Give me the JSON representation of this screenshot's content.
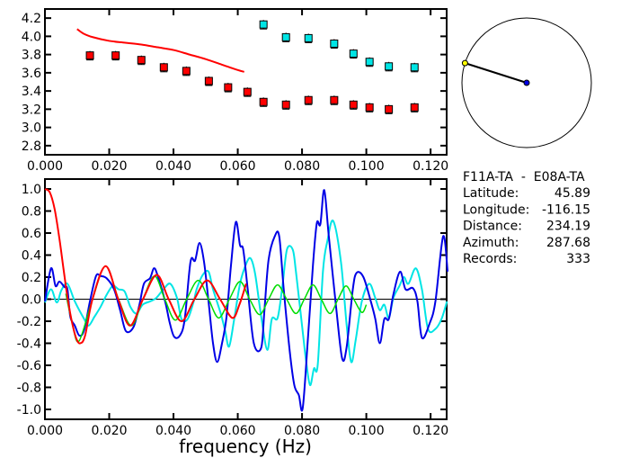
{
  "chart_data": [
    {
      "type": "scatter",
      "title": "",
      "xlabel": "",
      "ylabel": "",
      "xlim": [
        0,
        0.125
      ],
      "ylim": [
        2.7,
        4.3
      ],
      "xticks": [
        "0.000",
        "0.020",
        "0.040",
        "0.060",
        "0.080",
        "0.100",
        "0.120"
      ],
      "xtick_values": [
        0,
        0.02,
        0.04,
        0.06,
        0.08,
        0.1,
        0.12
      ],
      "yticks": [
        "2.8",
        "3.0",
        "3.2",
        "3.4",
        "3.6",
        "3.8",
        "4.0",
        "4.2"
      ],
      "ytick_values": [
        2.8,
        3.0,
        3.2,
        3.4,
        3.6,
        3.8,
        4.0,
        4.2
      ],
      "series": [
        {
          "name": "red-points",
          "kind": "points",
          "color": "#ff0000",
          "x": [
            0.014,
            0.022,
            0.03,
            0.037,
            0.044,
            0.051,
            0.057,
            0.063,
            0.068,
            0.075,
            0.082,
            0.09,
            0.096,
            0.101,
            0.107,
            0.115
          ],
          "y": [
            3.79,
            3.79,
            3.74,
            3.66,
            3.62,
            3.51,
            3.44,
            3.39,
            3.28,
            3.25,
            3.3,
            3.3,
            3.25,
            3.22,
            3.2,
            3.22
          ]
        },
        {
          "name": "cyan-points",
          "kind": "points",
          "color": "#00e5e5",
          "x": [
            0.068,
            0.075,
            0.082,
            0.09,
            0.096,
            0.101,
            0.107,
            0.115
          ],
          "y": [
            4.13,
            3.99,
            3.98,
            3.92,
            3.81,
            3.72,
            3.67,
            3.66
          ]
        },
        {
          "name": "red-curve",
          "kind": "line",
          "color": "#ff0000",
          "x": [
            0.01,
            0.012,
            0.015,
            0.02,
            0.025,
            0.03,
            0.035,
            0.04,
            0.045,
            0.05,
            0.055,
            0.06,
            0.062
          ],
          "y": [
            4.08,
            4.03,
            3.99,
            3.95,
            3.93,
            3.91,
            3.88,
            3.85,
            3.8,
            3.75,
            3.69,
            3.63,
            3.61
          ]
        }
      ]
    },
    {
      "type": "line",
      "title": "",
      "xlabel": "frequency (Hz)",
      "ylabel": "",
      "xlim": [
        0,
        0.125
      ],
      "ylim": [
        -1.09,
        1.09
      ],
      "xticks": [
        "0.000",
        "0.020",
        "0.040",
        "0.060",
        "0.080",
        "0.100",
        "0.120"
      ],
      "xtick_values": [
        0,
        0.02,
        0.04,
        0.06,
        0.08,
        0.1,
        0.12
      ],
      "yticks": [
        "1.0",
        "0.8",
        "0.6",
        "0.4",
        "0.2",
        "0.0",
        "-0.2",
        "-0.4",
        "-0.6",
        "-0.8",
        "-1.0"
      ],
      "ytick_values": [
        1.0,
        0.8,
        0.6,
        0.4,
        0.2,
        0.0,
        -0.2,
        -0.4,
        -0.6,
        -0.8,
        -1.0
      ],
      "series": [
        {
          "name": "cyan",
          "color": "#00e5e5",
          "x": [
            0,
            0.0019,
            0.0037,
            0.0051,
            0.007,
            0.0093,
            0.0122,
            0.0136,
            0.0154,
            0.0173,
            0.0192,
            0.0211,
            0.0229,
            0.0248,
            0.0266,
            0.0285,
            0.0304,
            0.0327,
            0.0346,
            0.0369,
            0.039,
            0.0411,
            0.0425,
            0.0444,
            0.0463,
            0.0472,
            0.0491,
            0.0509,
            0.0523,
            0.0547,
            0.0561,
            0.0573,
            0.0589,
            0.0607,
            0.0626,
            0.064,
            0.0654,
            0.0673,
            0.0692,
            0.0706,
            0.0724,
            0.0739,
            0.0753,
            0.0771,
            0.0781,
            0.08,
            0.0813,
            0.0825,
            0.0837,
            0.0849,
            0.0865,
            0.0879,
            0.0897,
            0.0921,
            0.0939,
            0.0953,
            0.0967,
            0.0986,
            0.1009,
            0.1028,
            0.1042,
            0.1056,
            0.107,
            0.1084,
            0.1103,
            0.1117,
            0.1131,
            0.1154,
            0.1173,
            0.1192,
            0.1215,
            0.1234,
            0.1251
          ],
          "y": [
            -0.03,
            0.09,
            -0.03,
            0.08,
            0.14,
            -0.02,
            -0.18,
            -0.24,
            -0.16,
            -0.07,
            0.04,
            0.12,
            0.09,
            0.07,
            -0.07,
            -0.13,
            -0.05,
            -0.02,
            0.01,
            0.09,
            0.14,
            0.01,
            -0.18,
            -0.18,
            -0.02,
            0.09,
            0.22,
            0.25,
            0.09,
            -0.13,
            -0.29,
            -0.43,
            -0.18,
            0.14,
            0.32,
            0.37,
            0.23,
            -0.16,
            -0.46,
            -0.18,
            -0.17,
            0.12,
            0.45,
            0.45,
            0.25,
            -0.24,
            -0.57,
            -0.78,
            -0.63,
            -0.59,
            0.25,
            0.53,
            0.71,
            0.34,
            -0.24,
            -0.57,
            -0.37,
            -0.02,
            0.14,
            0.01,
            -0.1,
            -0.05,
            -0.17,
            0.01,
            0.12,
            0.2,
            0.14,
            0.28,
            0.09,
            -0.27,
            -0.27,
            -0.18,
            -0.02
          ]
        },
        {
          "name": "blue",
          "color": "#0000e6",
          "x": [
            0,
            0.0019,
            0.0033,
            0.0045,
            0.0061,
            0.007,
            0.0079,
            0.0093,
            0.0107,
            0.0122,
            0.014,
            0.0159,
            0.0173,
            0.0192,
            0.0215,
            0.0234,
            0.0252,
            0.0276,
            0.0294,
            0.0308,
            0.0327,
            0.0339,
            0.035,
            0.0374,
            0.0388,
            0.0402,
            0.042,
            0.0435,
            0.0453,
            0.0467,
            0.0481,
            0.0495,
            0.0509,
            0.0523,
            0.0536,
            0.0551,
            0.0565,
            0.0579,
            0.0594,
            0.0607,
            0.0617,
            0.0631,
            0.065,
            0.0673,
            0.0683,
            0.0696,
            0.0715,
            0.0729,
            0.0743,
            0.0762,
            0.0776,
            0.079,
            0.0802,
            0.0818,
            0.0834,
            0.0846,
            0.0857,
            0.0869,
            0.0883,
            0.0907,
            0.0925,
            0.0939,
            0.0958,
            0.097,
            0.0991,
            0.1014,
            0.1028,
            0.1042,
            0.1056,
            0.107,
            0.1084,
            0.1105,
            0.1122,
            0.1145,
            0.1159,
            0.1173,
            0.1197,
            0.1215,
            0.1239,
            0.1253
          ],
          "y": [
            -0.02,
            0.28,
            0.12,
            0.16,
            0.11,
            0.09,
            -0.16,
            -0.24,
            -0.33,
            -0.28,
            -0.02,
            0.21,
            0.21,
            0.19,
            0.09,
            -0.1,
            -0.29,
            -0.25,
            -0.05,
            0.14,
            0.19,
            0.28,
            0.22,
            -0.02,
            -0.21,
            -0.34,
            -0.33,
            -0.18,
            0.34,
            0.35,
            0.51,
            0.34,
            -0.02,
            -0.4,
            -0.57,
            -0.4,
            -0.16,
            0.31,
            0.7,
            0.49,
            0.45,
            0.09,
            -0.4,
            -0.44,
            -0.1,
            0.36,
            0.57,
            0.57,
            0.09,
            -0.48,
            -0.78,
            -0.87,
            -0.99,
            -0.37,
            0.31,
            0.69,
            0.68,
            0.99,
            0.58,
            -0.1,
            -0.54,
            -0.43,
            0.09,
            0.24,
            0.2,
            -0.02,
            -0.18,
            -0.4,
            -0.18,
            -0.18,
            0.04,
            0.25,
            0.09,
            0.1,
            -0.02,
            -0.35,
            -0.22,
            -0.02,
            0.57,
            0.25
          ]
        },
        {
          "name": "green",
          "color": "#00dd00",
          "x": [
            0.0065,
            0.0085,
            0.0106,
            0.0148,
            0.0189,
            0.0229,
            0.0269,
            0.0305,
            0.0341,
            0.0373,
            0.0406,
            0.0441,
            0.0477,
            0.0509,
            0.0541,
            0.0574,
            0.0607,
            0.0637,
            0.0668,
            0.0696,
            0.0724,
            0.0752,
            0.0781,
            0.0807,
            0.0834,
            0.086,
            0.0887,
            0.0912,
            0.0937,
            0.0961,
            0.0986,
            0.1
          ],
          "y": [
            0.05,
            -0.22,
            -0.38,
            0,
            0.3,
            0,
            -0.24,
            0,
            0.21,
            0,
            -0.19,
            0,
            0.17,
            0,
            -0.17,
            0,
            0.16,
            0,
            -0.14,
            0,
            0.13,
            0,
            -0.13,
            0,
            0.13,
            0,
            -0.13,
            0,
            0.12,
            0,
            -0.12,
            -0.05
          ]
        },
        {
          "name": "red",
          "color": "#ff0000",
          "x": [
            0,
            0.0015,
            0.003,
            0.0045,
            0.0058,
            0.0071,
            0.0085,
            0.0098,
            0.011,
            0.0125,
            0.0148,
            0.0189,
            0.0228,
            0.0265,
            0.0305,
            0.0348,
            0.0385,
            0.0425,
            0.0465,
            0.0505,
            0.0545,
            0.0583,
            0.0605,
            0.0626
          ],
          "y": [
            1.0,
            0.97,
            0.82,
            0.55,
            0.27,
            0.0,
            -0.22,
            -0.36,
            -0.4,
            -0.33,
            0,
            0.3,
            0,
            -0.24,
            0,
            0.22,
            0,
            -0.2,
            0,
            0.17,
            0,
            -0.17,
            -0.05,
            0.14
          ]
        }
      ]
    }
  ],
  "info": {
    "station_pair": "F11A-TA  -  E08A-TA",
    "rows": [
      {
        "label": "Latitude:",
        "value": "45.89"
      },
      {
        "label": "Longitude:",
        "value": "-116.15"
      },
      {
        "label": "Distance:",
        "value": "234.19"
      },
      {
        "label": "Azimuth:",
        "value": "287.68"
      },
      {
        "label": "Records:",
        "value": "333"
      }
    ]
  },
  "map": {
    "azimuth_deg": 287.68,
    "station_color": "#ffff00",
    "center_color": "#0000e6"
  }
}
